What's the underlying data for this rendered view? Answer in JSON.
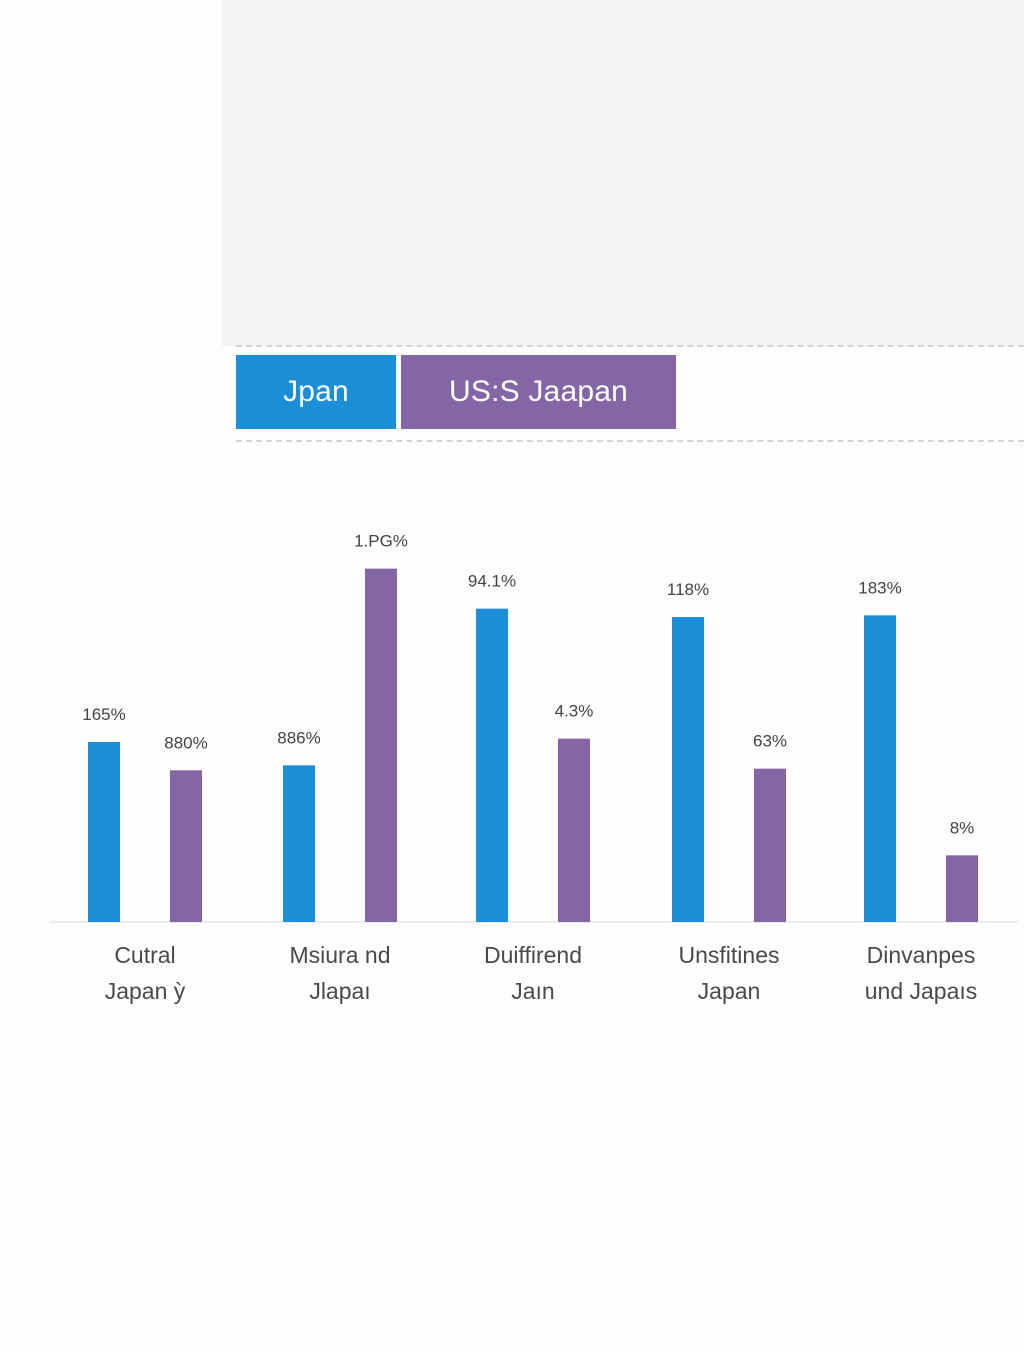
{
  "legend": [
    {
      "name": "Jpan",
      "color": "#1a8fd8"
    },
    {
      "name": "US:S Jaapan",
      "color": "#8465a6"
    }
  ],
  "chart_data": {
    "type": "bar",
    "categories": [
      [
        "Cutral",
        "Japan ỳ"
      ],
      [
        "Msiura nd",
        "Jlapaı"
      ],
      [
        "Duiffirend",
        "Jaın"
      ],
      [
        "Unsfitines",
        "Japan"
      ],
      [
        "Dinvanpes",
        "und Japaıs"
      ]
    ],
    "series": [
      {
        "name": "Jpan",
        "color": "#1a8fd8",
        "values": [
          108,
          94,
          188,
          183,
          184
        ],
        "labels": [
          "165%",
          "886%",
          "94.1%",
          "118%",
          "183%"
        ]
      },
      {
        "name": "US:S Jaapan",
        "color": "#8465a6",
        "values": [
          91,
          212,
          110,
          92,
          40
        ],
        "labels": [
          "880%",
          "1.PG%",
          "4.3%",
          "63%",
          "8%"
        ]
      }
    ],
    "ylim": [
      0,
      240
    ],
    "grid": false,
    "legend_position": "top"
  }
}
